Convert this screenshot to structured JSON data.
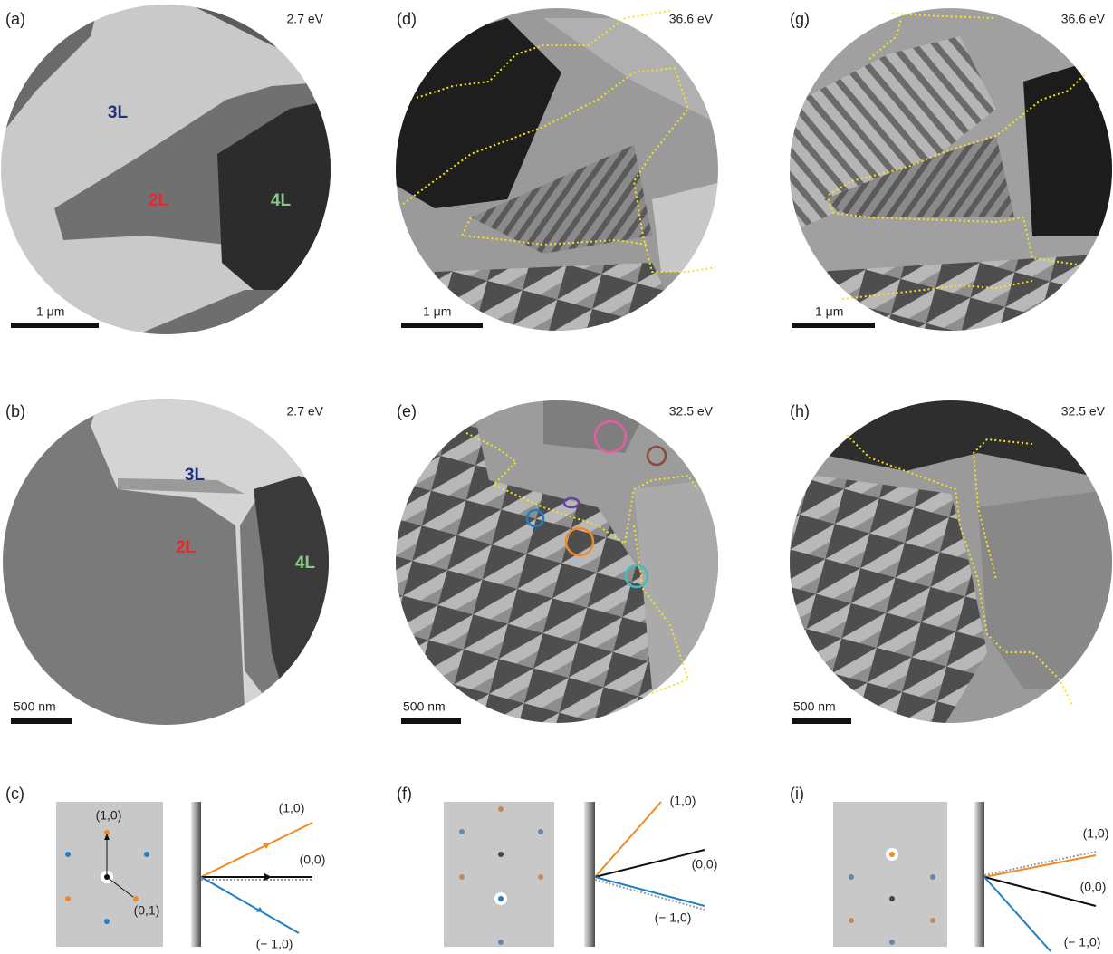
{
  "panels": [
    {
      "label": "(a)",
      "energy": "2.7 eV",
      "scale_bar": "1 μm",
      "layers": [
        "3L",
        "2L",
        "4L"
      ]
    },
    {
      "label": "(b)",
      "energy": "2.7 eV",
      "scale_bar": "500 nm",
      "layers": [
        "3L",
        "2L",
        "4L"
      ]
    },
    {
      "label": "(c)",
      "spots": [
        "(1,0)",
        "(0,1)"
      ],
      "beams": [
        "(1,0)",
        "(0,0)",
        "(− 1,0)"
      ]
    },
    {
      "label": "(d)",
      "energy": "36.6 eV",
      "scale_bar": "1 μm"
    },
    {
      "label": "(e)",
      "energy": "32.5 eV",
      "scale_bar": "500 nm"
    },
    {
      "label": "(f)",
      "beams": [
        "(1,0)",
        "(0,0)",
        "(− 1,0)"
      ]
    },
    {
      "label": "(g)",
      "energy": "36.6 eV",
      "scale_bar": "1 μm"
    },
    {
      "label": "(h)",
      "energy": "32.5 eV",
      "scale_bar": "500 nm"
    },
    {
      "label": "(i)",
      "beams": [
        "(1,0)",
        "(0,0)",
        "(− 1,0)"
      ]
    }
  ]
}
